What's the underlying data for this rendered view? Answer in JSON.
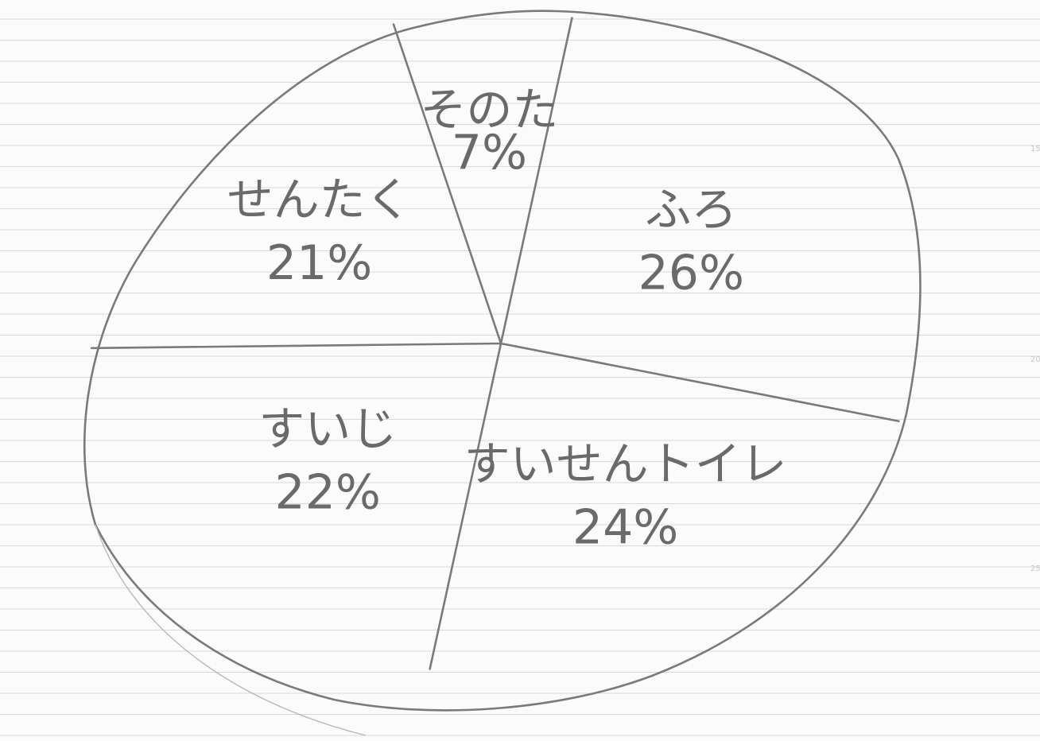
{
  "chart_data": {
    "type": "pie",
    "categories": [
      "ふろ",
      "すいせんトイレ",
      "すいじ",
      "せんたく",
      "そのた"
    ],
    "values": [
      26,
      24,
      22,
      21,
      7
    ],
    "value_labels": [
      "26%",
      "24%",
      "22%",
      "21%",
      "7%"
    ],
    "slice_texts": [
      "ふろ",
      "すいせんトイレ",
      "すいじ",
      "せんたく",
      "そのた"
    ],
    "legend": "none",
    "grid": false,
    "style": "hand-drawn pencil on ruled notebook paper",
    "colors": {
      "pencil": "#7a7a7a",
      "paper": "#fbfbfb",
      "rule": "#d9d9d9"
    }
  }
}
